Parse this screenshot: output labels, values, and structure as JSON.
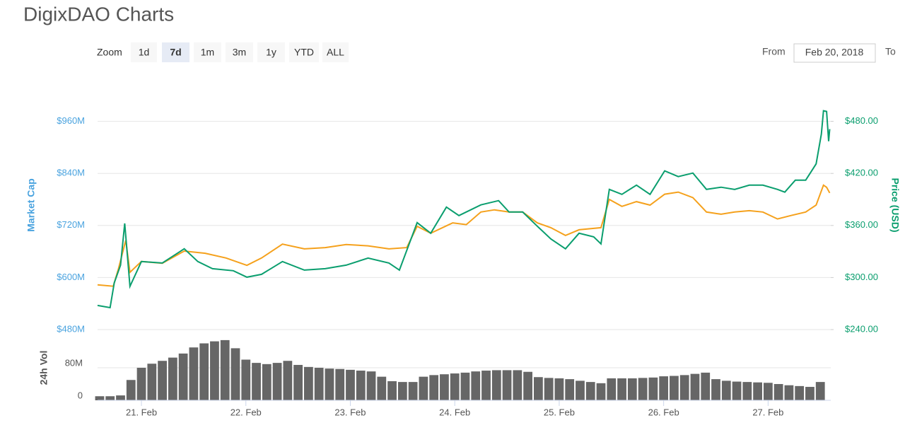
{
  "page": {
    "title": "DigixDAO Charts"
  },
  "controls": {
    "zoom_label": "Zoom",
    "buttons": [
      "1d",
      "7d",
      "1m",
      "3m",
      "1y",
      "YTD",
      "ALL"
    ],
    "selected": "7d",
    "from_label": "From",
    "from_value": "Feb 20, 2018",
    "to_label": "To"
  },
  "chart_data": [
    {
      "type": "line",
      "ylabel": "Market Cap",
      "y2label": "Price (USD)",
      "xlim": [
        20.58,
        27.6
      ],
      "ylim": [
        480,
        1080
      ],
      "yticks": [
        {
          "value": 480,
          "label": "$480M"
        },
        {
          "value": 600,
          "label": "$600M"
        },
        {
          "value": 720,
          "label": "$720M"
        },
        {
          "value": 840,
          "label": "$840M"
        },
        {
          "value": 960,
          "label": "$960M"
        }
      ],
      "y2lim": [
        240,
        540
      ],
      "y2ticks": [
        {
          "value": 240,
          "label": "$240.00"
        },
        {
          "value": 300,
          "label": "$300.00"
        },
        {
          "value": 360,
          "label": "$360.00"
        },
        {
          "value": 420,
          "label": "$420.00"
        },
        {
          "value": 480,
          "label": "$480.00"
        }
      ],
      "grid": true,
      "ylabel_color": "#4aa3df",
      "y2label_color": "#0a9e6e",
      "series": [
        {
          "color": "#f5a11c",
          "axis": "y",
          "x": [
            20.58,
            20.73,
            20.78,
            20.85,
            20.89,
            21.0,
            21.2,
            21.41,
            21.61,
            21.81,
            22.01,
            22.15,
            22.35,
            22.56,
            22.76,
            22.96,
            23.17,
            23.37,
            23.54,
            23.64,
            23.77,
            23.98,
            24.11,
            24.25,
            24.38,
            24.52,
            24.65,
            24.79,
            24.92,
            25.06,
            25.19,
            25.4,
            25.48,
            25.6,
            25.74,
            25.87,
            26.01,
            26.14,
            26.28,
            26.41,
            26.55,
            26.68,
            26.82,
            26.95,
            27.09,
            27.22,
            27.36,
            27.46,
            27.53,
            27.56,
            27.59
          ],
          "values": [
            583,
            580,
            620,
            686,
            612,
            637,
            633,
            661,
            656,
            645,
            628,
            645,
            677,
            666,
            669,
            676,
            673,
            666,
            669,
            718,
            702,
            726,
            722,
            751,
            756,
            751,
            751,
            726,
            715,
            697,
            710,
            715,
            780,
            764,
            775,
            767,
            792,
            797,
            784,
            751,
            746,
            751,
            754,
            751,
            735,
            743,
            751,
            767,
            813,
            808,
            795
          ]
        },
        {
          "color": "#0a9e6e",
          "axis": "y2",
          "x": [
            20.58,
            20.7,
            20.74,
            20.8,
            20.84,
            20.89,
            21.0,
            21.2,
            21.41,
            21.54,
            21.68,
            21.88,
            22.01,
            22.15,
            22.35,
            22.56,
            22.76,
            22.96,
            23.17,
            23.37,
            23.47,
            23.64,
            23.77,
            23.92,
            24.04,
            24.25,
            24.42,
            24.52,
            24.65,
            24.79,
            24.92,
            25.06,
            25.19,
            25.33,
            25.4,
            25.48,
            25.6,
            25.74,
            25.87,
            26.01,
            26.14,
            26.28,
            26.41,
            26.55,
            26.68,
            26.82,
            26.95,
            27.09,
            27.16,
            27.26,
            27.36,
            27.46,
            27.51,
            27.53,
            27.56,
            27.58,
            27.59
          ],
          "values": [
            267.8,
            265.3,
            293.9,
            314.3,
            362.4,
            289.8,
            318.4,
            316.7,
            333.1,
            318.4,
            310.2,
            307.8,
            300.4,
            303.7,
            318.4,
            308.6,
            310.2,
            314.3,
            322.4,
            316.7,
            308.6,
            363.3,
            351.0,
            381.2,
            371.4,
            383.7,
            388.6,
            375.5,
            375.5,
            359.2,
            344.5,
            333.1,
            351.0,
            346.9,
            338.8,
            401.6,
            395.9,
            406.5,
            395.9,
            422.9,
            416.3,
            420.4,
            401.6,
            404.1,
            401.6,
            406.5,
            406.5,
            401.6,
            398.4,
            412.2,
            412.2,
            431.0,
            465.3,
            492.2,
            491.4,
            457.1,
            471.0
          ]
        }
      ]
    },
    {
      "type": "bar",
      "ylabel": "24h Vol",
      "color": "#666666",
      "xlim": [
        20.58,
        27.6
      ],
      "ylim": [
        0,
        160
      ],
      "yticks": [
        0,
        {
          "value": 80,
          "label": "80M"
        }
      ],
      "grid": true,
      "bar_step": 0.1,
      "xticks": [
        {
          "value": 21,
          "label": "21. Feb"
        },
        {
          "value": 22,
          "label": "22. Feb"
        },
        {
          "value": 23,
          "label": "23. Feb"
        },
        {
          "value": 24,
          "label": "24. Feb"
        },
        {
          "value": 25,
          "label": "25. Feb"
        },
        {
          "value": 26,
          "label": "26. Feb"
        },
        {
          "value": 27,
          "label": "27. Feb"
        }
      ],
      "x": [
        20.6,
        20.7,
        20.8,
        20.9,
        21.0,
        21.1,
        21.2,
        21.3,
        21.4,
        21.5,
        21.6,
        21.7,
        21.8,
        21.9,
        22.0,
        22.1,
        22.2,
        22.3,
        22.4,
        22.5,
        22.6,
        22.7,
        22.8,
        22.9,
        23.0,
        23.1,
        23.2,
        23.3,
        23.4,
        23.5,
        23.6,
        23.7,
        23.8,
        23.9,
        24.0,
        24.1,
        24.2,
        24.3,
        24.4,
        24.5,
        24.6,
        24.7,
        24.8,
        24.9,
        25.0,
        25.1,
        25.2,
        25.3,
        25.4,
        25.5,
        25.6,
        25.7,
        25.8,
        25.9,
        26.0,
        26.1,
        26.2,
        26.3,
        26.4,
        26.5,
        26.6,
        26.7,
        26.8,
        26.9,
        27.0,
        27.1,
        27.2,
        27.3,
        27.4,
        27.5
      ],
      "values": [
        10,
        10,
        12,
        50,
        80,
        90,
        97,
        105,
        115,
        130,
        140,
        145,
        148,
        128,
        100,
        92,
        89,
        92,
        97,
        87,
        82,
        80,
        78,
        77,
        75,
        73,
        71,
        58,
        47,
        45,
        45,
        58,
        62,
        64,
        66,
        68,
        71,
        73,
        74,
        74,
        74,
        70,
        57,
        55,
        54,
        52,
        48,
        45,
        42,
        54,
        54,
        54,
        55,
        56,
        59,
        60,
        62,
        65,
        68,
        52,
        48,
        46,
        45,
        44,
        43,
        40,
        37,
        35,
        33,
        45
      ]
    }
  ]
}
